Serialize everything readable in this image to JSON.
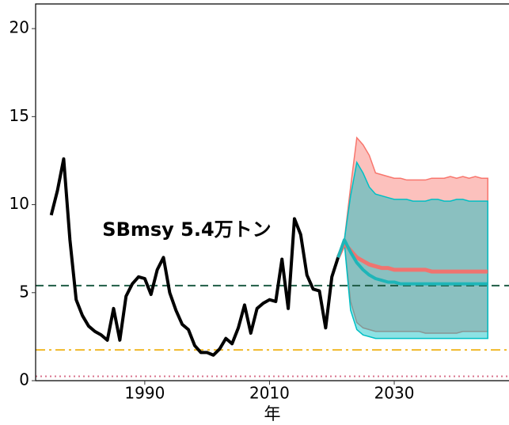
{
  "chart_data": {
    "type": "line",
    "x_label": "年",
    "annotation": "SBmsy 5.4万トン",
    "xlim": [
      1972.5,
      2048.4
    ],
    "xticks": [
      1990,
      2010,
      2030
    ],
    "ylim": [
      0,
      21.4
    ],
    "yticks": [
      0,
      5,
      10,
      15,
      20
    ],
    "hlines": [
      {
        "value": 5.4,
        "color": "#1e5c45",
        "style": "dashed"
      },
      {
        "value": 1.75,
        "color": "#f0b92a",
        "style": "dashdot"
      },
      {
        "value": 0.25,
        "color": "#d9738c",
        "style": "dotted"
      }
    ],
    "bands": [
      {
        "color": "#f8766d",
        "x": [
          2022,
          2023,
          2024,
          2025,
          2026,
          2027,
          2028,
          2029,
          2030,
          2031,
          2032,
          2033,
          2034,
          2035,
          2036,
          2037,
          2038,
          2039,
          2040,
          2041,
          2042,
          2043,
          2044,
          2045
        ],
        "upper": [
          8.0,
          11.0,
          13.8,
          13.4,
          12.8,
          11.8,
          11.7,
          11.6,
          11.5,
          11.5,
          11.4,
          11.4,
          11.4,
          11.4,
          11.5,
          11.5,
          11.5,
          11.6,
          11.5,
          11.6,
          11.5,
          11.6,
          11.5,
          11.5
        ],
        "lower": [
          7.8,
          4.5,
          3.3,
          3.0,
          2.9,
          2.8,
          2.8,
          2.8,
          2.8,
          2.8,
          2.8,
          2.8,
          2.8,
          2.7,
          2.7,
          2.7,
          2.7,
          2.7,
          2.7,
          2.8,
          2.8,
          2.8,
          2.8,
          2.8
        ]
      },
      {
        "color": "#00bfc4",
        "x": [
          2022,
          2023,
          2024,
          2025,
          2026,
          2027,
          2028,
          2029,
          2030,
          2031,
          2032,
          2033,
          2034,
          2035,
          2036,
          2037,
          2038,
          2039,
          2040,
          2041,
          2042,
          2043,
          2044,
          2045
        ],
        "upper": [
          8.0,
          10.5,
          12.4,
          11.8,
          11.0,
          10.6,
          10.5,
          10.4,
          10.3,
          10.3,
          10.3,
          10.2,
          10.2,
          10.2,
          10.3,
          10.3,
          10.2,
          10.2,
          10.3,
          10.3,
          10.2,
          10.2,
          10.2,
          10.2
        ],
        "lower": [
          7.8,
          4.0,
          2.9,
          2.6,
          2.5,
          2.4,
          2.4,
          2.4,
          2.4,
          2.4,
          2.4,
          2.4,
          2.4,
          2.4,
          2.4,
          2.4,
          2.4,
          2.4,
          2.4,
          2.4,
          2.4,
          2.4,
          2.4,
          2.4
        ]
      }
    ],
    "series": [
      {
        "color": "#000000",
        "width": 4,
        "x": [
          1975,
          1976,
          1977,
          1978,
          1979,
          1980,
          1981,
          1982,
          1983,
          1984,
          1985,
          1986,
          1987,
          1988,
          1989,
          1990,
          1991,
          1992,
          1993,
          1994,
          1995,
          1996,
          1997,
          1998,
          1999,
          2000,
          2001,
          2002,
          2003,
          2004,
          2005,
          2006,
          2007,
          2008,
          2009,
          2010,
          2011,
          2012,
          2013,
          2014,
          2015,
          2016,
          2017,
          2018,
          2019,
          2020,
          2021
        ],
        "values": [
          9.4,
          10.8,
          12.6,
          8.0,
          4.6,
          3.7,
          3.1,
          2.8,
          2.6,
          2.3,
          4.1,
          2.3,
          4.8,
          5.5,
          5.9,
          5.8,
          4.9,
          6.3,
          7.0,
          5.0,
          4.0,
          3.2,
          2.9,
          2.0,
          1.6,
          1.6,
          1.45,
          1.8,
          2.4,
          2.1,
          3.0,
          4.3,
          2.7,
          4.1,
          4.4,
          4.6,
          4.5,
          6.9,
          4.1,
          9.2,
          8.3,
          6.0,
          5.2,
          5.1,
          3.0,
          5.9,
          7.0
        ]
      },
      {
        "color": "#f07470",
        "width": 5,
        "x": [
          2021,
          2022,
          2023,
          2024,
          2025,
          2026,
          2027,
          2028,
          2029,
          2030,
          2031,
          2032,
          2033,
          2034,
          2035,
          2036,
          2037,
          2038,
          2039,
          2040,
          2041,
          2042,
          2043,
          2044,
          2045
        ],
        "values": [
          7.0,
          7.8,
          7.4,
          7.0,
          6.8,
          6.6,
          6.5,
          6.4,
          6.4,
          6.3,
          6.3,
          6.3,
          6.3,
          6.3,
          6.3,
          6.2,
          6.2,
          6.2,
          6.2,
          6.2,
          6.2,
          6.2,
          6.2,
          6.2,
          6.2
        ]
      },
      {
        "color": "#1fb5b8",
        "width": 4,
        "x": [
          2021,
          2022,
          2023,
          2024,
          2025,
          2026,
          2027,
          2028,
          2029,
          2030,
          2031,
          2032,
          2033,
          2034,
          2035,
          2036,
          2037,
          2038,
          2039,
          2040,
          2041,
          2042,
          2043,
          2044,
          2045
        ],
        "values": [
          7.0,
          8.0,
          7.3,
          6.7,
          6.3,
          6.0,
          5.8,
          5.7,
          5.6,
          5.6,
          5.5,
          5.5,
          5.5,
          5.5,
          5.5,
          5.5,
          5.5,
          5.5,
          5.5,
          5.5,
          5.5,
          5.5,
          5.5,
          5.5,
          5.5
        ]
      }
    ]
  }
}
